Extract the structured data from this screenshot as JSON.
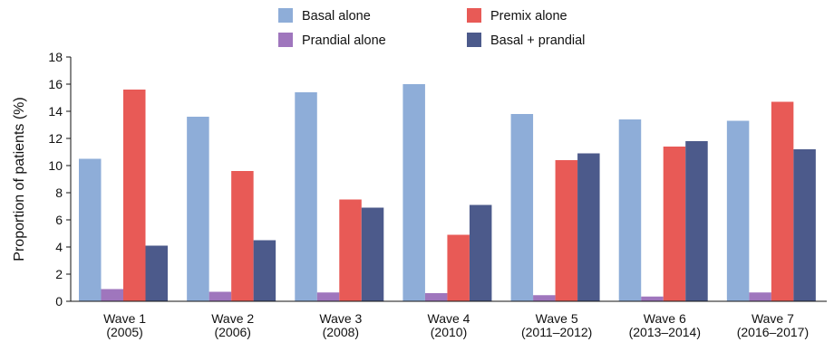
{
  "chart_data": {
    "type": "bar",
    "title": "",
    "xlabel": "",
    "ylabel": "Proportion of patients (%)",
    "ylim": [
      0,
      18
    ],
    "yticks": [
      0,
      2,
      4,
      6,
      8,
      10,
      12,
      14,
      16,
      18
    ],
    "grid": false,
    "legend_position": "top",
    "categories": [
      {
        "line1": "Wave 1",
        "line2": "(2005)"
      },
      {
        "line1": "Wave 2",
        "line2": "(2006)"
      },
      {
        "line1": "Wave 3",
        "line2": "(2008)"
      },
      {
        "line1": "Wave 4",
        "line2": "(2010)"
      },
      {
        "line1": "Wave 5",
        "line2": "(2011–2012)"
      },
      {
        "line1": "Wave 6",
        "line2": "(2013–2014)"
      },
      {
        "line1": "Wave 7",
        "line2": "(2016–2017)"
      }
    ],
    "series": [
      {
        "name": "Basal alone",
        "color": "#8eadd8",
        "values": [
          10.5,
          13.6,
          15.4,
          16.0,
          13.8,
          13.4,
          13.3
        ]
      },
      {
        "name": "Prandial alone",
        "color": "#9f76bd",
        "values": [
          0.9,
          0.7,
          0.65,
          0.6,
          0.45,
          0.35,
          0.65
        ]
      },
      {
        "name": "Premix alone",
        "color": "#e85a56",
        "values": [
          15.6,
          9.6,
          7.5,
          4.9,
          10.4,
          11.4,
          14.7
        ]
      },
      {
        "name": "Basal + prandial",
        "color": "#4c5a8b",
        "values": [
          4.1,
          4.5,
          6.9,
          7.1,
          10.9,
          11.8,
          11.2
        ]
      }
    ]
  }
}
